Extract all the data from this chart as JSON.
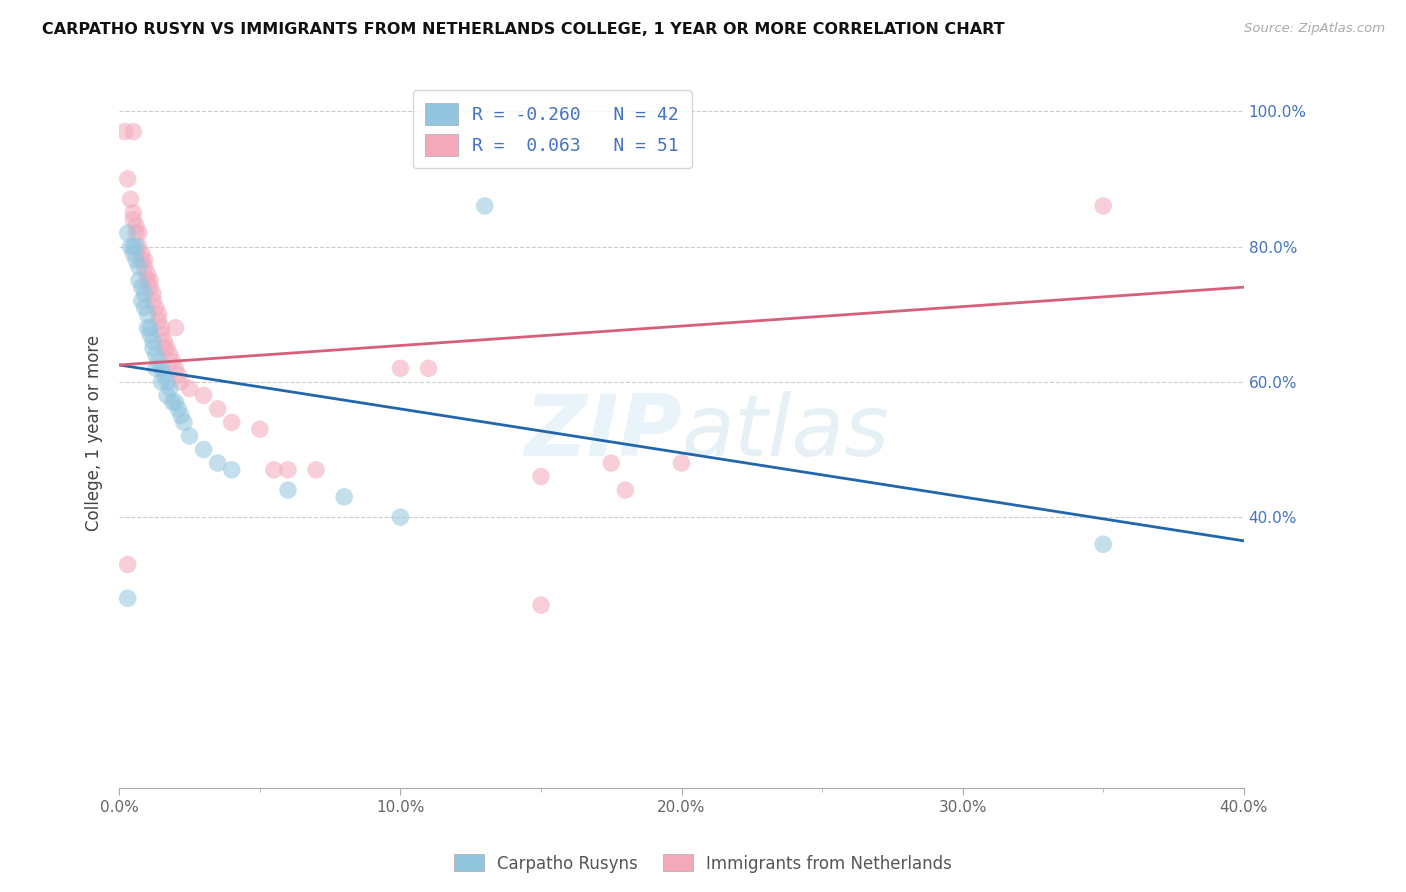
{
  "title": "CARPATHO RUSYN VS IMMIGRANTS FROM NETHERLANDS COLLEGE, 1 YEAR OR MORE CORRELATION CHART",
  "source": "Source: ZipAtlas.com",
  "ylabel": "College, 1 year or more",
  "xlim": [
    0.0,
    0.4
  ],
  "ylim": [
    0.0,
    1.05
  ],
  "xtick_labels": [
    "0.0%",
    "10.0%",
    "20.0%",
    "30.0%",
    "40.0%"
  ],
  "xtick_values": [
    0.0,
    0.1,
    0.2,
    0.3,
    0.4
  ],
  "ytick_labels_right": [
    "100.0%",
    "80.0%",
    "60.0%",
    "40.0%"
  ],
  "ytick_values_right": [
    1.0,
    0.8,
    0.6,
    0.4
  ],
  "ytick_grid": [
    0.4,
    0.6,
    0.8,
    1.0
  ],
  "legend_R1": "-0.260",
  "legend_N1": "42",
  "legend_R2": "0.063",
  "legend_N2": "51",
  "color_blue": "#92c5de",
  "color_pink": "#f4a9bb",
  "line_color_blue": "#2166ac",
  "line_color_pink": "#d6607a",
  "watermark": "ZIPatlas",
  "blue_points": [
    [
      0.003,
      0.82
    ],
    [
      0.004,
      0.8
    ],
    [
      0.005,
      0.8
    ],
    [
      0.005,
      0.79
    ],
    [
      0.006,
      0.8
    ],
    [
      0.006,
      0.78
    ],
    [
      0.007,
      0.77
    ],
    [
      0.007,
      0.75
    ],
    [
      0.008,
      0.74
    ],
    [
      0.008,
      0.72
    ],
    [
      0.009,
      0.73
    ],
    [
      0.009,
      0.71
    ],
    [
      0.01,
      0.7
    ],
    [
      0.01,
      0.68
    ],
    [
      0.011,
      0.68
    ],
    [
      0.011,
      0.67
    ],
    [
      0.012,
      0.66
    ],
    [
      0.012,
      0.65
    ],
    [
      0.013,
      0.64
    ],
    [
      0.013,
      0.62
    ],
    [
      0.014,
      0.63
    ],
    [
      0.015,
      0.62
    ],
    [
      0.015,
      0.6
    ],
    [
      0.016,
      0.61
    ],
    [
      0.017,
      0.6
    ],
    [
      0.017,
      0.58
    ],
    [
      0.018,
      0.59
    ],
    [
      0.019,
      0.57
    ],
    [
      0.02,
      0.57
    ],
    [
      0.021,
      0.56
    ],
    [
      0.022,
      0.55
    ],
    [
      0.023,
      0.54
    ],
    [
      0.025,
      0.52
    ],
    [
      0.03,
      0.5
    ],
    [
      0.035,
      0.48
    ],
    [
      0.04,
      0.47
    ],
    [
      0.06,
      0.44
    ],
    [
      0.08,
      0.43
    ],
    [
      0.1,
      0.4
    ],
    [
      0.13,
      0.86
    ],
    [
      0.35,
      0.36
    ],
    [
      0.003,
      0.28
    ]
  ],
  "pink_points": [
    [
      0.002,
      0.97
    ],
    [
      0.005,
      0.97
    ],
    [
      0.003,
      0.9
    ],
    [
      0.004,
      0.87
    ],
    [
      0.005,
      0.85
    ],
    [
      0.005,
      0.84
    ],
    [
      0.006,
      0.83
    ],
    [
      0.006,
      0.82
    ],
    [
      0.007,
      0.82
    ],
    [
      0.007,
      0.8
    ],
    [
      0.008,
      0.79
    ],
    [
      0.008,
      0.78
    ],
    [
      0.009,
      0.78
    ],
    [
      0.009,
      0.77
    ],
    [
      0.01,
      0.76
    ],
    [
      0.01,
      0.75
    ],
    [
      0.011,
      0.75
    ],
    [
      0.011,
      0.74
    ],
    [
      0.012,
      0.73
    ],
    [
      0.012,
      0.72
    ],
    [
      0.013,
      0.71
    ],
    [
      0.014,
      0.7
    ],
    [
      0.014,
      0.69
    ],
    [
      0.015,
      0.68
    ],
    [
      0.015,
      0.67
    ],
    [
      0.016,
      0.66
    ],
    [
      0.016,
      0.65
    ],
    [
      0.017,
      0.65
    ],
    [
      0.018,
      0.64
    ],
    [
      0.019,
      0.63
    ],
    [
      0.02,
      0.62
    ],
    [
      0.02,
      0.68
    ],
    [
      0.021,
      0.61
    ],
    [
      0.022,
      0.6
    ],
    [
      0.025,
      0.59
    ],
    [
      0.03,
      0.58
    ],
    [
      0.035,
      0.56
    ],
    [
      0.04,
      0.54
    ],
    [
      0.05,
      0.53
    ],
    [
      0.055,
      0.47
    ],
    [
      0.06,
      0.47
    ],
    [
      0.07,
      0.47
    ],
    [
      0.1,
      0.62
    ],
    [
      0.11,
      0.62
    ],
    [
      0.15,
      0.46
    ],
    [
      0.175,
      0.48
    ],
    [
      0.18,
      0.44
    ],
    [
      0.2,
      0.48
    ],
    [
      0.35,
      0.86
    ],
    [
      0.003,
      0.33
    ],
    [
      0.15,
      0.27
    ]
  ],
  "blue_line_x": [
    0.0,
    0.4
  ],
  "blue_line_y": [
    0.625,
    0.365
  ],
  "pink_line_x": [
    0.0,
    0.4
  ],
  "pink_line_y": [
    0.625,
    0.74
  ]
}
